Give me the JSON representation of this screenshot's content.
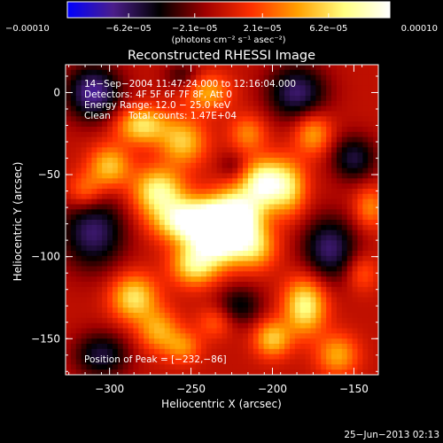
{
  "chart_data": {
    "type": "heatmap",
    "title": "Reconstructed RHESSI Image",
    "xlabel": "Heliocentric X (arcsec)",
    "ylabel": "Heliocentric Y (arcsec)",
    "xlim": [
      -327,
      -135
    ],
    "ylim": [
      -172,
      17
    ],
    "x_ticks": [
      -300,
      -250,
      -200,
      -150
    ],
    "x_tick_labels": [
      "−300",
      "−250",
      "−200",
      "−150"
    ],
    "y_ticks": [
      0,
      -50,
      -100,
      -150
    ],
    "y_tick_labels": [
      "0",
      "−50",
      "−100",
      "−150"
    ],
    "colorbar": {
      "range": [
        -0.0001,
        0.0001
      ],
      "ticks": [
        -0.0001,
        -6.2e-05,
        -2.1e-05,
        2.1e-05,
        6.2e-05,
        0.0001
      ],
      "tick_labels": [
        "−0.00010",
        "−6.2e−05",
        "−2.1e−05",
        "2.1e−05",
        "6.2e−05",
        "0.00010"
      ],
      "units": "(photons cm⁻² s⁻¹ asec⁻²)"
    },
    "peak": [
      -232,
      -86
    ],
    "grid": false,
    "annotations": {
      "time_range": "14−Sep−2004 11:47:24.000 to 12:16:04.000",
      "detectors": "Detectors: 4F 5F 6F 7F 8F, Att 0",
      "energy_range": "Energy Range: 12.0 − 25.0 keV",
      "clean": "Clean",
      "total_counts": "Total counts: 1.47E+04",
      "peak_position": "Position of Peak = [−232,−86]"
    },
    "sources": [
      {
        "x": -232,
        "y": -86,
        "amp": 0.00013,
        "sx": 12,
        "sy": 12
      },
      {
        "x": -252,
        "y": -78,
        "amp": 0.0001,
        "sx": 14,
        "sy": 9
      },
      {
        "x": -270,
        "y": -60,
        "amp": 8e-05,
        "sx": 11,
        "sy": 10
      },
      {
        "x": -220,
        "y": -74,
        "amp": 8e-05,
        "sx": 11,
        "sy": 12
      },
      {
        "x": -248,
        "y": -105,
        "amp": 7e-05,
        "sx": 10,
        "sy": 9
      },
      {
        "x": -205,
        "y": -55,
        "amp": 9e-05,
        "sx": 9,
        "sy": 10
      },
      {
        "x": -190,
        "y": -58,
        "amp": 6e-05,
        "sx": 8,
        "sy": 12
      },
      {
        "x": -210,
        "y": -95,
        "amp": 5e-05,
        "sx": 9,
        "sy": 9
      },
      {
        "x": -300,
        "y": -45,
        "amp": 6e-05,
        "sx": 9,
        "sy": 9
      },
      {
        "x": -315,
        "y": -60,
        "amp": 4e-05,
        "sx": 8,
        "sy": 8
      },
      {
        "x": -280,
        "y": -20,
        "amp": 7e-05,
        "sx": 11,
        "sy": 8
      },
      {
        "x": -240,
        "y": 0,
        "amp": 5e-05,
        "sx": 10,
        "sy": 8
      },
      {
        "x": -255,
        "y": -30,
        "amp": 6e-05,
        "sx": 10,
        "sy": 10
      },
      {
        "x": -215,
        "y": -25,
        "amp": 4e-05,
        "sx": 8,
        "sy": 8
      },
      {
        "x": -175,
        "y": -25,
        "amp": 5e-05,
        "sx": 8,
        "sy": 9
      },
      {
        "x": -180,
        "y": -130,
        "amp": 8e-05,
        "sx": 9,
        "sy": 12
      },
      {
        "x": -200,
        "y": -150,
        "amp": 6e-05,
        "sx": 8,
        "sy": 8
      },
      {
        "x": -160,
        "y": -160,
        "amp": 5e-05,
        "sx": 9,
        "sy": 9
      },
      {
        "x": -285,
        "y": -125,
        "amp": 7e-05,
        "sx": 10,
        "sy": 10
      },
      {
        "x": -270,
        "y": -145,
        "amp": 5e-05,
        "sx": 9,
        "sy": 9
      },
      {
        "x": -255,
        "y": -155,
        "amp": 4e-05,
        "sx": 8,
        "sy": 7
      },
      {
        "x": -235,
        "y": -140,
        "amp": 3e-05,
        "sx": 8,
        "sy": 7
      },
      {
        "x": -140,
        "y": -70,
        "amp": 4e-05,
        "sx": 7,
        "sy": 9
      },
      {
        "x": -145,
        "y": -110,
        "amp": 3e-05,
        "sx": 7,
        "sy": 8
      },
      {
        "x": -310,
        "y": 0,
        "amp": -7e-05,
        "sx": 12,
        "sy": 12
      },
      {
        "x": -185,
        "y": 0,
        "amp": -6e-05,
        "sx": 13,
        "sy": 12
      },
      {
        "x": -150,
        "y": -40,
        "amp": -5e-05,
        "sx": 10,
        "sy": 10
      },
      {
        "x": -310,
        "y": -85,
        "amp": -6e-05,
        "sx": 14,
        "sy": 16
      },
      {
        "x": -165,
        "y": -95,
        "amp": -6e-05,
        "sx": 12,
        "sy": 14
      },
      {
        "x": -305,
        "y": -160,
        "amp": -5e-05,
        "sx": 12,
        "sy": 10
      },
      {
        "x": -220,
        "y": -130,
        "amp": -4e-05,
        "sx": 10,
        "sy": 9
      },
      {
        "x": -255,
        "y": 10,
        "amp": -3e-05,
        "sx": 8,
        "sy": 6
      },
      {
        "x": -225,
        "y": -45,
        "amp": -2e-05,
        "sx": 6,
        "sy": 6
      }
    ],
    "colors": {
      "background": "#000000",
      "colormap_stops": [
        "#0000ff",
        "#4b1e8a",
        "#000000",
        "#a00000",
        "#ff3000",
        "#ffa000",
        "#ffff80",
        "#ffffff"
      ]
    }
  },
  "footer": {
    "date": "25−Jun−2013 02:13"
  }
}
